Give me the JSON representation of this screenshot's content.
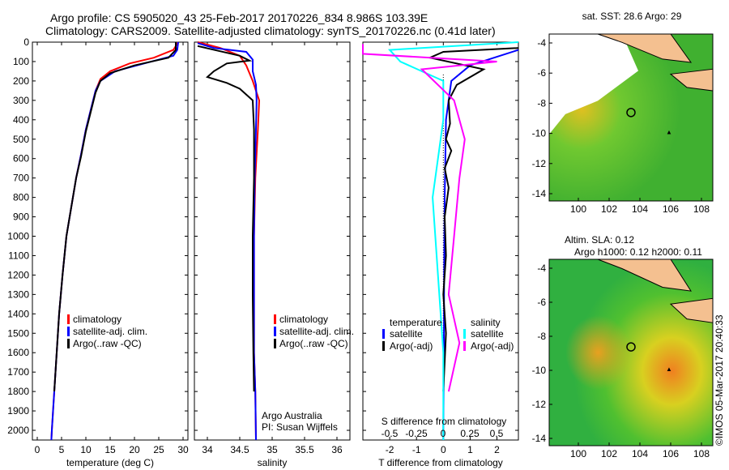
{
  "header": {
    "line1": "Argo profile: CS 5905020_43 25-Feb-2017 20170226_834 8.986S 103.39E",
    "line2": "Climatology: CARS2009. Satellite-adjusted climatology: synTS_20170226.nc (0.41d later)"
  },
  "colors": {
    "climatology": "#ff0000",
    "satellite": "#0000ff",
    "argo": "#000000",
    "sal_sat": "#00ffff",
    "sal_argo": "#ff00ff"
  },
  "chart_data": [
    {
      "type": "line",
      "xlabel": "temperature (deg C)",
      "xlim": [
        -1,
        31
      ],
      "ylim": [
        2050,
        0
      ],
      "xticks": [
        "0",
        "5",
        "10",
        "15",
        "20",
        "25",
        "30"
      ],
      "xtick_values": [
        0,
        5,
        10,
        15,
        20,
        25,
        30
      ],
      "yticks": [
        "0",
        "100",
        "200",
        "300",
        "400",
        "500",
        "600",
        "700",
        "800",
        "900",
        "1000",
        "1100",
        "1200",
        "1300",
        "1400",
        "1500",
        "1600",
        "1700",
        "1800",
        "1900",
        "2000"
      ],
      "legend": [
        "climatology",
        "satellite-adj. clim.",
        "Argo(..raw -QC)"
      ],
      "series": [
        {
          "name": "climatology",
          "color": "#ff0000",
          "points": [
            [
              29,
              0
            ],
            [
              28,
              40
            ],
            [
              24,
              80
            ],
            [
              19,
              110
            ],
            [
              15,
              150
            ],
            [
              13,
              190
            ],
            [
              12,
              250
            ],
            [
              11,
              350
            ],
            [
              10,
              450
            ],
            [
              9,
              580
            ],
            [
              8,
              700
            ],
            [
              7,
              850
            ],
            [
              6,
              1000
            ],
            [
              5.2,
              1200
            ],
            [
              4.5,
              1400
            ],
            [
              4,
              1600
            ],
            [
              3.5,
              1800
            ],
            [
              3,
              2000
            ],
            [
              2.9,
              2050
            ]
          ]
        },
        {
          "name": "satellite",
          "color": "#0000ff",
          "points": [
            [
              29,
              0
            ],
            [
              28.8,
              40
            ],
            [
              28,
              70
            ],
            [
              22,
              110
            ],
            [
              16,
              150
            ],
            [
              13,
              200
            ],
            [
              12,
              250
            ],
            [
              11,
              350
            ],
            [
              10,
              450
            ],
            [
              9,
              580
            ],
            [
              8,
              700
            ],
            [
              7,
              850
            ],
            [
              6,
              1000
            ],
            [
              5.2,
              1200
            ],
            [
              4.5,
              1400
            ],
            [
              4,
              1600
            ],
            [
              3.5,
              1800
            ],
            [
              3,
              2000
            ],
            [
              2.9,
              2050
            ]
          ]
        },
        {
          "name": "Argo",
          "color": "#000000",
          "points": [
            [
              28.5,
              0
            ],
            [
              28.5,
              40
            ],
            [
              27,
              80
            ],
            [
              20,
              120
            ],
            [
              15,
              160
            ],
            [
              13,
              200
            ],
            [
              12,
              260
            ],
            [
              11,
              360
            ],
            [
              10,
              460
            ],
            [
              9,
              590
            ],
            [
              8,
              700
            ],
            [
              7,
              850
            ],
            [
              6,
              1000
            ],
            [
              5.2,
              1200
            ],
            [
              4.5,
              1400
            ],
            [
              4,
              1600
            ],
            [
              3.5,
              1800
            ]
          ]
        }
      ]
    },
    {
      "type": "line",
      "xlabel": "salinity",
      "xlim": [
        33.8,
        36.2
      ],
      "ylim": [
        2050,
        0
      ],
      "xticks": [
        "34",
        "34.5",
        "35",
        "35.5",
        "36"
      ],
      "xtick_values": [
        34,
        34.5,
        35,
        35.5,
        36
      ],
      "legend": [
        "climatology",
        "satellite-adj. clim.",
        "Argo(..raw -QC)"
      ],
      "annotation": [
        "Argo Australia",
        "PI: Susan Wijffels"
      ],
      "series": [
        {
          "name": "climatology",
          "color": "#ff0000",
          "points": [
            [
              33.85,
              0
            ],
            [
              34.2,
              30
            ],
            [
              34.5,
              70
            ],
            [
              34.6,
              120
            ],
            [
              34.7,
              200
            ],
            [
              34.8,
              300
            ],
            [
              34.78,
              450
            ],
            [
              34.74,
              700
            ],
            [
              34.72,
              1000
            ],
            [
              34.72,
              1300
            ],
            [
              34.72,
              1600
            ],
            [
              34.74,
              1800
            ],
            [
              34.75,
              2050
            ]
          ]
        },
        {
          "name": "satellite",
          "color": "#0000ff",
          "points": [
            [
              33.85,
              5
            ],
            [
              34.1,
              30
            ],
            [
              34.6,
              50
            ],
            [
              34.7,
              90
            ],
            [
              34.7,
              150
            ],
            [
              34.75,
              220
            ],
            [
              34.76,
              300
            ],
            [
              34.75,
              450
            ],
            [
              34.73,
              700
            ],
            [
              34.72,
              1000
            ],
            [
              34.72,
              1300
            ],
            [
              34.72,
              1600
            ],
            [
              34.74,
              1800
            ],
            [
              34.75,
              2050
            ]
          ]
        },
        {
          "name": "Argo",
          "color": "#000000",
          "points": [
            [
              33.85,
              20
            ],
            [
              34.5,
              70
            ],
            [
              34.65,
              95
            ],
            [
              34.3,
              110
            ],
            [
              34.1,
              150
            ],
            [
              34.0,
              180
            ],
            [
              34.3,
              210
            ],
            [
              34.5,
              240
            ],
            [
              34.7,
              300
            ],
            [
              34.72,
              450
            ],
            [
              34.72,
              700
            ],
            [
              34.7,
              1000
            ],
            [
              34.7,
              1300
            ],
            [
              34.71,
              1600
            ],
            [
              34.72,
              1800
            ]
          ]
        }
      ]
    },
    {
      "type": "line",
      "xlabel": "T difference from climatology",
      "xlabel2": "S difference from climatology",
      "xlim": [
        -3,
        2.8
      ],
      "ylim": [
        2050,
        0
      ],
      "xticks": [
        "-2",
        "-1",
        "0",
        "1",
        "2"
      ],
      "xtick_values": [
        -2,
        -1,
        0,
        1,
        2
      ],
      "xticks2": [
        "-0.5",
        "-0.25",
        "0",
        "0.25",
        "0.5"
      ],
      "legend_title": [
        "temperature",
        "salinity"
      ],
      "legend": [
        "satellite",
        "Argo(-adj)",
        "satellite",
        "Argo(-adj)"
      ],
      "series": [
        {
          "name": "T satellite",
          "color": "#0000ff",
          "points": [
            [
              2.8,
              40
            ],
            [
              1,
              120
            ],
            [
              0.3,
              200
            ],
            [
              0.1,
              400
            ],
            [
              0.05,
              800
            ],
            [
              0.03,
              1200
            ],
            [
              0.02,
              1600
            ],
            [
              0,
              2000
            ],
            [
              0,
              2050
            ]
          ]
        },
        {
          "name": "T Argo",
          "color": "#000000",
          "points": [
            [
              2.8,
              30
            ],
            [
              0,
              50
            ],
            [
              -0.5,
              80
            ],
            [
              1.5,
              140
            ],
            [
              0.5,
              220
            ],
            [
              0.2,
              300
            ],
            [
              0.25,
              420
            ],
            [
              0.1,
              500
            ],
            [
              0.3,
              560
            ],
            [
              0.05,
              650
            ],
            [
              0.2,
              750
            ],
            [
              0.05,
              900
            ],
            [
              0.1,
              1100
            ],
            [
              0,
              1300
            ],
            [
              0.1,
              1500
            ],
            [
              0,
              1800
            ]
          ]
        },
        {
          "name": "S satellite",
          "color": "#00ffff",
          "points": [
            [
              0.8,
              0
            ],
            [
              -0.5,
              40
            ],
            [
              -0.4,
              100
            ],
            [
              0,
              200
            ],
            [
              0,
              400
            ],
            [
              -0.1,
              800
            ],
            [
              -0.05,
              1200
            ],
            [
              0,
              1600
            ],
            [
              0,
              2050
            ]
          ]
        },
        {
          "name": "S Argo",
          "color": "#ff00ff",
          "points": [
            [
              -1,
              10
            ],
            [
              -0.8,
              60
            ],
            [
              0.5,
              100
            ],
            [
              -0.2,
              140
            ],
            [
              0.1,
              300
            ],
            [
              0.2,
              500
            ],
            [
              0.15,
              700
            ],
            [
              0.1,
              1000
            ],
            [
              0.05,
              1300
            ],
            [
              0.15,
              1550
            ],
            [
              0.05,
              1800
            ]
          ]
        }
      ]
    }
  ],
  "maps": [
    {
      "title": "sat. SST: 28.6 Argo: 29",
      "xticks": [
        "100",
        "102",
        "104",
        "106",
        "108"
      ],
      "yticks": [
        "-4",
        "-6",
        "-8",
        "-10",
        "-12",
        "-14"
      ]
    },
    {
      "title": "Altim. SLA: 0.12",
      "title2": "Argo h1000: 0.12 h2000: 0.11",
      "xticks": [
        "100",
        "102",
        "104",
        "106",
        "108"
      ],
      "yticks": [
        "-4",
        "-6",
        "-8",
        "-10",
        "-12",
        "-14"
      ]
    }
  ],
  "credit": "©IMOS 05-Mar-2017 20:40:33"
}
